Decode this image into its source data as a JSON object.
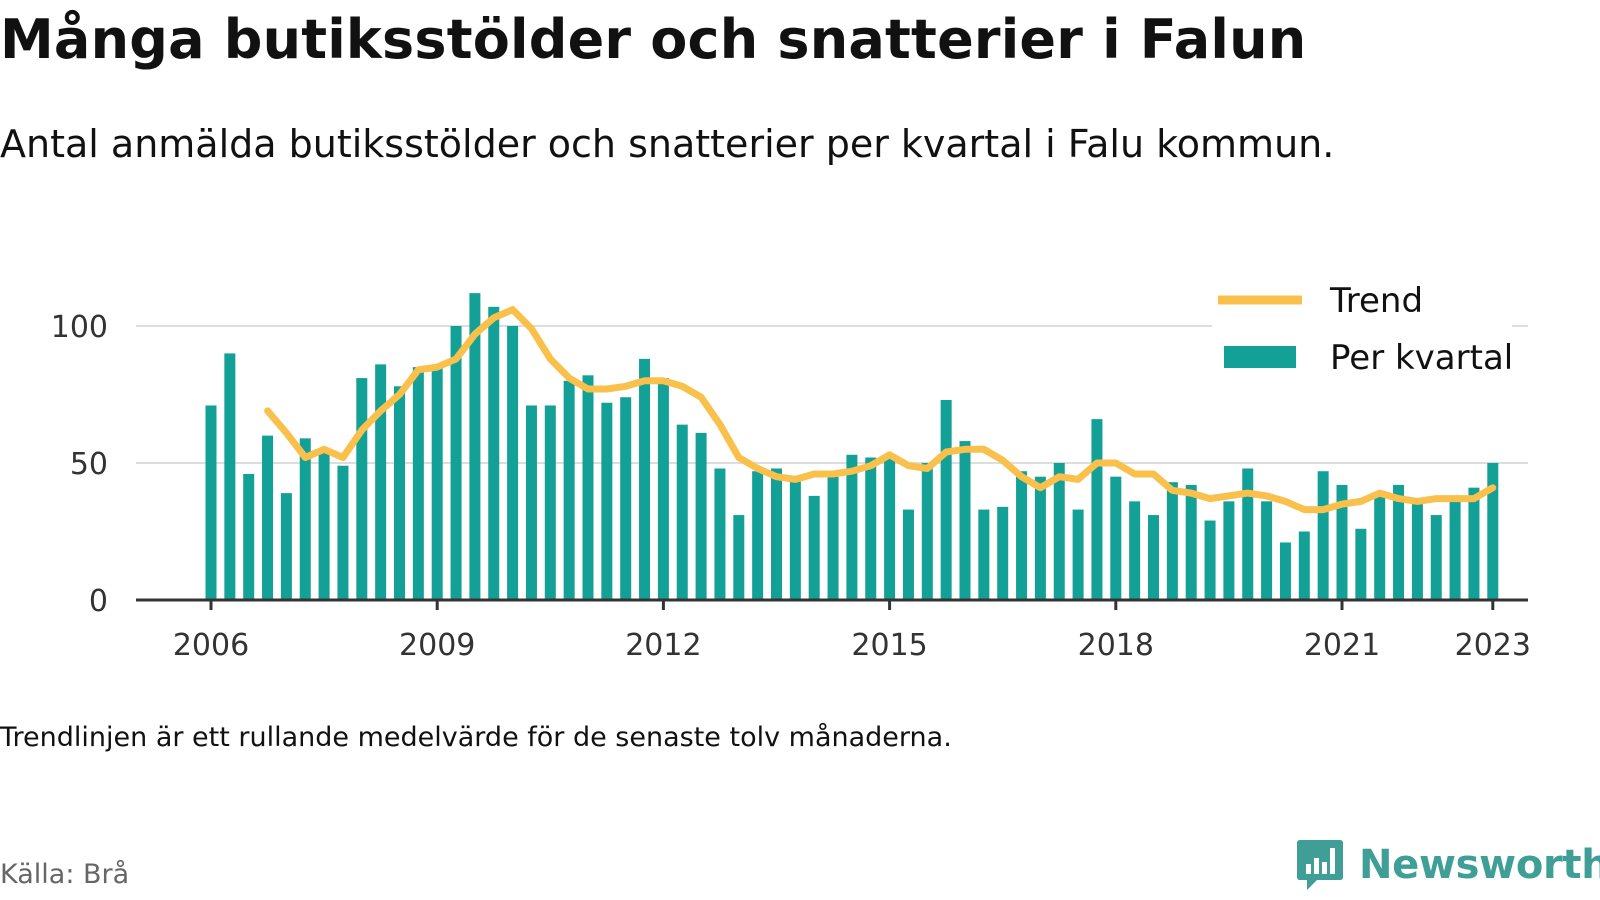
{
  "title": "Många butiksstölder och snatterier i Falun",
  "subtitle": "Antal anmälda butiksstölder och snatterier per kvartal i Falu kommun.",
  "note": "Trendlinjen är ett rullande medelvärde för de senaste tolv månaderna.",
  "source": "Källa: Brå",
  "brand": {
    "name": "Newsworthy",
    "icon": "newsworthy-logo-icon"
  },
  "colors": {
    "bars": "#13a096",
    "trend": "#f9c04c",
    "grid": "#dddddd",
    "axis": "#333333"
  },
  "chart_data": {
    "type": "bar",
    "x_start": "2006 Q1",
    "x_ticks": [
      "2006",
      "2009",
      "2012",
      "2015",
      "2018",
      "2021",
      "2023"
    ],
    "y_ticks": [
      "0",
      "50",
      "100"
    ],
    "ylim": [
      0,
      120
    ],
    "grid": true,
    "legend_position": "top-right",
    "legend": [
      {
        "label": "Trend",
        "kind": "line"
      },
      {
        "label": "Per kvartal",
        "kind": "bar"
      }
    ],
    "series": [
      {
        "name": "Per kvartal",
        "type": "bar",
        "values": [
          71,
          90,
          46,
          60,
          39,
          59,
          54,
          49,
          81,
          86,
          78,
          85,
          85,
          100,
          112,
          107,
          100,
          71,
          71,
          80,
          82,
          72,
          74,
          88,
          81,
          64,
          61,
          48,
          31,
          47,
          48,
          44,
          38,
          47,
          53,
          52,
          53,
          33,
          50,
          73,
          58,
          33,
          34,
          47,
          45,
          50,
          33,
          66,
          45,
          36,
          31,
          43,
          42,
          29,
          36,
          48,
          36,
          21,
          25,
          47,
          42,
          26,
          38,
          42,
          37,
          31,
          37,
          41,
          50
        ]
      },
      {
        "name": "Trend",
        "type": "line",
        "start_index": 3,
        "values": [
          69,
          61,
          52,
          55,
          52,
          62,
          69,
          75,
          84,
          85,
          88,
          97,
          103,
          106,
          99,
          88,
          81,
          77,
          77,
          78,
          80,
          80,
          78,
          74,
          64,
          52,
          48,
          45,
          44,
          46,
          46,
          47,
          49,
          53,
          49,
          48,
          54,
          55,
          55,
          51,
          45,
          41,
          45,
          44,
          50,
          50,
          46,
          46,
          40,
          39,
          37,
          38,
          39,
          38,
          36,
          33,
          33,
          35,
          36,
          39,
          37,
          36,
          37,
          37,
          37,
          41
        ]
      }
    ]
  }
}
